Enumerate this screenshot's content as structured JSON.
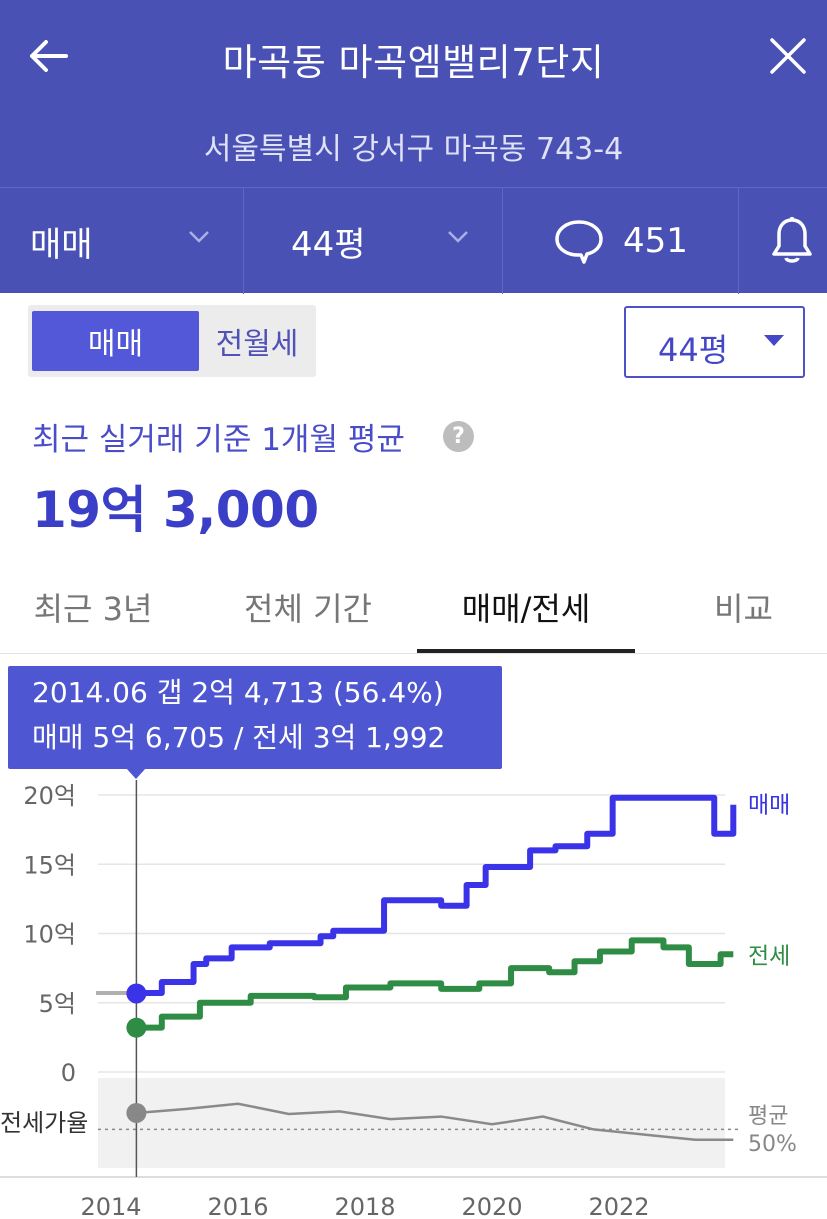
{
  "header": {
    "title": "마곡동 마곡엠밸리7단지",
    "address": "서울특별시 강서구 마곡동 743-4",
    "trade_type": "매매",
    "area": "44평",
    "comment_count": "451",
    "icons": {
      "back": "arrow-left-icon",
      "close": "close-icon",
      "trade_chevron": "chevron-down-icon",
      "area_chevron": "chevron-down-icon",
      "comment": "speech-bubble-icon",
      "alarm": "bell-icon"
    }
  },
  "toggle": {
    "active": "매매",
    "inactive": "전월세"
  },
  "area_dropdown": "44평",
  "average": {
    "label": "최근 실거래 기준 1개월 평균",
    "price": "19억 3,000"
  },
  "tabs": [
    {
      "label": "최근 3년",
      "active": false
    },
    {
      "label": "전체 기간",
      "active": false
    },
    {
      "label": "매매/전세",
      "active": true
    },
    {
      "label": "비교",
      "active": false
    }
  ],
  "tooltip": {
    "line1": "2014.06  갭 2억 4,713 (56.4%)",
    "line2": "매매 5억 6,705 / 전세 3억 1,992"
  },
  "colors": {
    "header_bg": "#4951b4",
    "accent": "#3b3fc7",
    "sale": "#3a33e8",
    "jeonse": "#2e8c45",
    "ratio": "#8a8a8a"
  },
  "chart_data": {
    "type": "line",
    "x_ticks": [
      "2014",
      "2016",
      "2018",
      "2020",
      "2022"
    ],
    "y_ticks": [
      "20억",
      "15억",
      "10억",
      "5억",
      "0"
    ],
    "ylim": [
      0,
      20
    ],
    "y_unit": "억",
    "series": [
      {
        "name": "매매",
        "color": "#3a33e8",
        "x": [
          2014.4,
          2014.8,
          2015.3,
          2015.5,
          2015.9,
          2016.5,
          2017.3,
          2017.5,
          2018.3,
          2019.2,
          2019.6,
          2019.9,
          2020.6,
          2021.0,
          2021.5,
          2021.9,
          2023.3,
          2023.5,
          2023.8
        ],
        "y": [
          5.7,
          6.5,
          7.8,
          8.2,
          9.0,
          9.3,
          9.8,
          10.2,
          12.4,
          12.0,
          13.5,
          14.8,
          16.0,
          16.3,
          17.2,
          19.8,
          19.8,
          17.2,
          19.3
        ]
      },
      {
        "name": "전세",
        "color": "#2e8c45",
        "x": [
          2014.4,
          2014.8,
          2015.4,
          2016.2,
          2017.2,
          2017.7,
          2018.4,
          2019.2,
          2019.8,
          2020.3,
          2020.9,
          2021.3,
          2021.7,
          2022.2,
          2022.7,
          2023.1,
          2023.6,
          2023.8
        ],
        "y": [
          3.2,
          4.0,
          5.0,
          5.5,
          5.4,
          6.1,
          6.4,
          6.0,
          6.4,
          7.5,
          7.2,
          8.0,
          8.7,
          9.5,
          9.0,
          7.8,
          8.5,
          8.5
        ]
      },
      {
        "name": "전세가율",
        "color": "#8a8a8a",
        "x": [
          2014.4,
          2015.2,
          2016.0,
          2016.8,
          2017.6,
          2018.4,
          2019.2,
          2020.0,
          2020.8,
          2021.6,
          2022.4,
          2023.2,
          2023.8
        ],
        "y": [
          56.4,
          58,
          60,
          56,
          57,
          54,
          55,
          52,
          55,
          50,
          48,
          46,
          46
        ]
      }
    ],
    "ratio_average_label": "평균\n50%",
    "ratio_average": 50,
    "selected": {
      "x": 2014.4,
      "sale": 5.67,
      "jeonse": 3.2,
      "ratio": 56.4
    },
    "ratio_label": "전세가율"
  }
}
